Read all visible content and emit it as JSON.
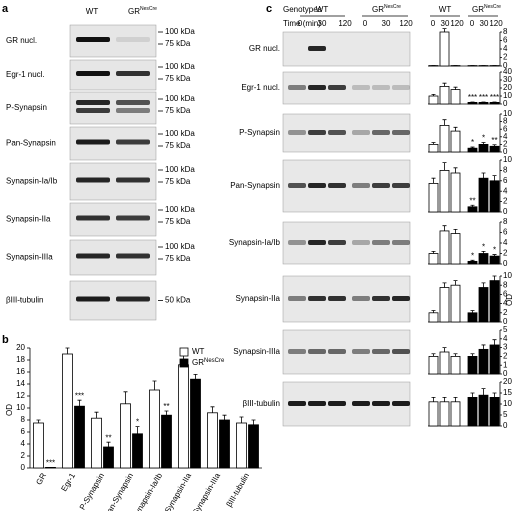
{
  "panel_a": {
    "label": "a",
    "columns": [
      "WT",
      "GR"
    ],
    "column_superscript": "NesCre",
    "rows": [
      {
        "label": "GR nucl.",
        "markers": [
          "100 kDa",
          "75 kDa"
        ]
      },
      {
        "label": "Egr-1 nucl.",
        "markers": [
          "100 kDa",
          "75 kDa"
        ]
      },
      {
        "label": "P-Synapsin",
        "markers": [
          "100 kDa",
          "75 kDa"
        ]
      },
      {
        "label": "Pan-Synapsin",
        "markers": [
          "100 kDa",
          "75 kDa"
        ]
      },
      {
        "label": "Synapsin-Ia/Ib",
        "markers": [
          "100 kDa",
          "75 kDa"
        ]
      },
      {
        "label": "Synapsin-IIa",
        "markers": [
          "100 kDa",
          "75 kDa"
        ]
      },
      {
        "label": "Synapsin-IIIa",
        "markers": [
          "100 kDa",
          "75 kDa"
        ]
      },
      {
        "label": "βIII-tubulin",
        "markers": [
          "50 kDa"
        ]
      }
    ]
  },
  "panel_b_label": "b",
  "panel_c": {
    "label": "c",
    "genotypes_label": "Genotypes",
    "time_label": "Time (min)",
    "genotypes": [
      "WT",
      "GR"
    ],
    "genotype_superscript": "NesCre",
    "times": [
      "0",
      "30",
      "120"
    ],
    "ylabel": "OD",
    "rows": [
      "GR nucl.",
      "Egr-1 nucl.",
      "P-Synapsin",
      "Pan-Synapsin",
      "Synapsin-Ia/Ib",
      "Synapsin-IIa",
      "Synapsin-IIIa",
      "βIII-tubulin"
    ]
  },
  "chart_data": [
    {
      "type": "bar",
      "ylabel": "OD",
      "legend": "upper right",
      "categories": [
        "GR",
        "Egr-1",
        "P-Synapsin",
        "Pan-Synapsin",
        "Synapsin-Ia/Ib",
        "Synapsin-IIa",
        "Synapsin-IIIa",
        "βIII-tubulin"
      ],
      "series": [
        {
          "name": "WT",
          "color": "#ffffff",
          "values": [
            7.5,
            19,
            8.3,
            10.7,
            13,
            17.2,
            9.2,
            7.5
          ],
          "errors": [
            0.5,
            1,
            1,
            2,
            1.5,
            2.5,
            1,
            1
          ]
        },
        {
          "name": "GR",
          "name_superscript": "NesCre",
          "color": "#000000",
          "values": [
            0.1,
            10.3,
            3.5,
            5.7,
            8.8,
            14.8,
            8,
            7.2
          ],
          "errors": [
            0,
            1,
            0.8,
            1.2,
            0.7,
            0.8,
            0.8,
            0.8
          ],
          "significance": [
            "***",
            "***",
            "**",
            "*",
            "**",
            null,
            null,
            null
          ]
        }
      ],
      "ylim": [
        0,
        20
      ],
      "yticks": [
        0,
        2,
        4,
        6,
        8,
        10,
        12,
        14,
        16,
        18,
        20
      ]
    },
    {
      "type": "bar",
      "ylim": [
        0,
        8
      ],
      "yticks": [
        0,
        2,
        4,
        6,
        8
      ],
      "series": [
        {
          "color": "#ffffff",
          "values": [
            0.1,
            8,
            0.1
          ],
          "errors": [
            0,
            0.8,
            0
          ]
        },
        {
          "color": "#000000",
          "values": [
            0.1,
            0.1,
            0.1
          ],
          "errors": [
            0,
            0,
            0
          ]
        }
      ]
    },
    {
      "type": "bar",
      "ylim": [
        0,
        40
      ],
      "yticks": [
        0,
        10,
        20,
        30,
        40
      ],
      "series": [
        {
          "color": "#ffffff",
          "values": [
            10,
            22,
            18
          ],
          "errors": [
            2,
            4,
            3
          ]
        },
        {
          "color": "#000000",
          "values": [
            2,
            2,
            2
          ],
          "errors": [
            0.5,
            0.5,
            0.5
          ],
          "significance": [
            "***",
            "***",
            "***"
          ]
        }
      ]
    },
    {
      "type": "bar",
      "ylim": [
        0,
        10
      ],
      "yticks": [
        0,
        2,
        4,
        6,
        8,
        10
      ],
      "series": [
        {
          "color": "#ffffff",
          "values": [
            2,
            7,
            5.5
          ],
          "errors": [
            0.5,
            1.5,
            1
          ]
        },
        {
          "color": "#000000",
          "values": [
            1,
            2,
            1.5
          ],
          "errors": [
            0.3,
            0.5,
            0.4
          ],
          "significance": [
            "*",
            "*",
            "**"
          ]
        }
      ]
    },
    {
      "type": "bar",
      "ylim": [
        0,
        10
      ],
      "yticks": [
        0,
        2,
        4,
        6,
        8,
        10
      ],
      "series": [
        {
          "color": "#ffffff",
          "values": [
            5.5,
            8,
            7.5
          ],
          "errors": [
            1,
            1.5,
            1
          ]
        },
        {
          "color": "#000000",
          "values": [
            1,
            6.5,
            6
          ],
          "errors": [
            0.3,
            1,
            1
          ],
          "significance": [
            "**",
            null,
            null
          ]
        }
      ]
    },
    {
      "type": "bar",
      "ylim": [
        0,
        8
      ],
      "yticks": [
        0,
        2,
        4,
        6,
        8
      ],
      "series": [
        {
          "color": "#ffffff",
          "values": [
            2,
            6.3,
            5.8
          ],
          "errors": [
            0.4,
            1,
            0.8
          ]
        },
        {
          "color": "#000000",
          "values": [
            0.5,
            2,
            1.5
          ],
          "errors": [
            0.2,
            0.4,
            0.3
          ],
          "significance": [
            "*",
            "*",
            "*"
          ]
        }
      ]
    },
    {
      "type": "bar",
      "ylim": [
        0,
        10
      ],
      "yticks": [
        0,
        2,
        4,
        6,
        8,
        10
      ],
      "series": [
        {
          "color": "#ffffff",
          "values": [
            2,
            7.5,
            8
          ],
          "errors": [
            0.5,
            1,
            1
          ]
        },
        {
          "color": "#000000",
          "values": [
            2,
            7.5,
            9
          ],
          "errors": [
            0.5,
            1,
            1
          ]
        }
      ]
    },
    {
      "type": "bar",
      "ylim": [
        0,
        5
      ],
      "yticks": [
        0,
        1,
        2,
        3,
        4,
        5
      ],
      "series": [
        {
          "color": "#ffffff",
          "values": [
            2,
            2.5,
            2
          ],
          "errors": [
            0.3,
            0.5,
            0.3
          ]
        },
        {
          "color": "#000000",
          "values": [
            2,
            2.8,
            3.3
          ],
          "errors": [
            0.3,
            0.5,
            0.6
          ]
        }
      ]
    },
    {
      "type": "bar",
      "ylim": [
        0,
        20
      ],
      "yticks": [
        0,
        5,
        10,
        15,
        20
      ],
      "series": [
        {
          "color": "#ffffff",
          "values": [
            11,
            11,
            11
          ],
          "errors": [
            2,
            2,
            2
          ]
        },
        {
          "color": "#000000",
          "values": [
            13,
            14,
            13
          ],
          "errors": [
            2,
            3,
            2
          ]
        }
      ]
    }
  ]
}
